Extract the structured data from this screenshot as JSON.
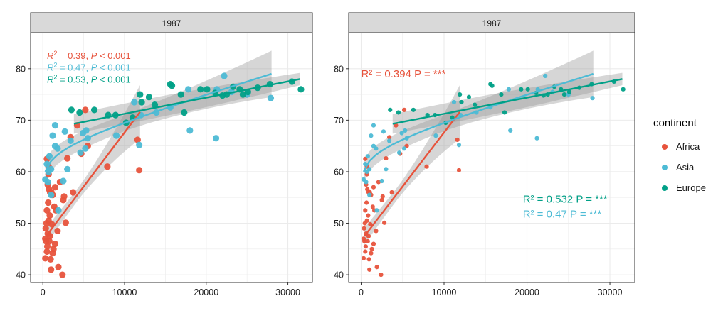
{
  "colors": {
    "Africa": "#E7533C",
    "Asia": "#4DBBD5",
    "Europe": "#00A087",
    "panel_bg": "#FFFFFF",
    "strip_bg": "#D9D9D9",
    "grid": "#EBEBEB",
    "ribbon": "#999999"
  },
  "legend": {
    "title": "continent",
    "items": [
      "Africa",
      "Asia",
      "Europe"
    ]
  },
  "chart_data": [
    {
      "type": "scatter",
      "title": "1987",
      "facet_label": "1987",
      "xlim": [
        -1500,
        33000
      ],
      "ylim": [
        38.5,
        87
      ],
      "xticks": [
        0,
        10000,
        20000,
        30000
      ],
      "xtick_labels": [
        "0",
        "10000",
        "20000",
        "30000"
      ],
      "yticks": [
        40,
        50,
        60,
        70,
        80
      ],
      "ytick_labels": [
        "40",
        "50",
        "60",
        "70",
        "80"
      ],
      "point_size": "large",
      "annotations": [
        {
          "prefix": "R",
          "sup": "2",
          "rest": " = 0.39, ",
          "p_italic": "P",
          "tail": " < 0.001",
          "series": "Africa",
          "x": 500,
          "y": 82.6
        },
        {
          "prefix": "R",
          "sup": "2",
          "rest": " = 0.47, ",
          "p_italic": "P",
          "tail": " < 0.001",
          "series": "Asia",
          "x": 500,
          "y": 80.3
        },
        {
          "prefix": "R",
          "sup": "2",
          "rest": " = 0.53, ",
          "p_italic": "P",
          "tail": " < 0.001",
          "series": "Europe",
          "x": 500,
          "y": 78.0
        }
      ],
      "fits": [
        {
          "series": "Africa",
          "type": "linear",
          "x": [
            400,
            11900
          ],
          "y": [
            47.5,
            71.6
          ],
          "ci_halfwidth": [
            1.2,
            5.2
          ]
        },
        {
          "series": "Asia",
          "type": "loglinear",
          "x": [
            300,
            28000
          ],
          "y": [
            60.0,
            79.0
          ],
          "ci_halfwidth": [
            1.6,
            4.5
          ]
        },
        {
          "series": "Europe",
          "type": "linear",
          "x": [
            3800,
            31500
          ],
          "y": [
            69.3,
            78.0
          ],
          "ci_halfwidth": [
            2.0,
            1.2
          ]
        }
      ]
    },
    {
      "type": "scatter",
      "title": "1987",
      "facet_label": "1987",
      "xlim": [
        -1500,
        33000
      ],
      "ylim": [
        38.5,
        87
      ],
      "xticks": [
        0,
        10000,
        20000,
        30000
      ],
      "xtick_labels": [
        "0",
        "10000",
        "20000",
        "30000"
      ],
      "yticks": [
        40,
        50,
        60,
        70,
        80
      ],
      "ytick_labels": [
        "40",
        "50",
        "60",
        "70",
        "80"
      ],
      "point_size": "small",
      "annotations": [
        {
          "text": "R² = 0.394 P = ***",
          "series": "Africa",
          "x": 0,
          "y": 79.0
        },
        {
          "text": "R² = 0.532 P = ***",
          "series": "Europe",
          "x": 19500,
          "y": 54.7
        },
        {
          "text": "R² = 0.47 P = ***",
          "series": "Asia",
          "x": 19500,
          "y": 51.8
        }
      ],
      "fits": [
        {
          "series": "Africa",
          "type": "linear",
          "x": [
            400,
            11900
          ],
          "y": [
            47.5,
            71.6
          ],
          "ci_halfwidth": [
            1.2,
            5.2
          ]
        },
        {
          "series": "Asia",
          "type": "loglinear",
          "x": [
            300,
            28000
          ],
          "y": [
            60.0,
            79.0
          ],
          "ci_halfwidth": [
            1.6,
            4.5
          ]
        },
        {
          "series": "Europe",
          "type": "linear",
          "x": [
            3800,
            31500
          ],
          "y": [
            69.3,
            78.0
          ],
          "ci_halfwidth": [
            2.0,
            1.2
          ]
        }
      ]
    }
  ],
  "series_points": {
    "Africa": [
      [
        2800,
        50.1
      ],
      [
        2600,
        55.2
      ],
      [
        2400,
        40.0
      ],
      [
        1900,
        41.5
      ],
      [
        1800,
        48.5
      ],
      [
        1600,
        52.5
      ],
      [
        1500,
        46.0
      ],
      [
        1400,
        53.2
      ],
      [
        1300,
        45.0
      ],
      [
        1200,
        44.2
      ],
      [
        1100,
        49.8
      ],
      [
        1050,
        56.0
      ],
      [
        1000,
        41.0
      ],
      [
        950,
        43.0
      ],
      [
        900,
        47.5
      ],
      [
        850,
        51.5
      ],
      [
        800,
        46.5
      ],
      [
        750,
        56.6
      ],
      [
        700,
        50.5
      ],
      [
        650,
        54.0
      ],
      [
        600,
        48.0
      ],
      [
        600,
        57.5
      ],
      [
        550,
        45.5
      ],
      [
        500,
        44.5
      ],
      [
        500,
        52.5
      ],
      [
        450,
        50.0
      ],
      [
        400,
        46.5
      ],
      [
        350,
        49.0
      ],
      [
        300,
        47.0
      ],
      [
        300,
        43.2
      ],
      [
        1500,
        57.0
      ],
      [
        1200,
        55.5
      ],
      [
        900,
        56.0
      ],
      [
        700,
        59.5
      ],
      [
        700,
        61.0
      ],
      [
        500,
        62.5
      ],
      [
        2100,
        58.0
      ],
      [
        2500,
        54.5
      ],
      [
        3400,
        66.7
      ],
      [
        3700,
        56.0
      ],
      [
        4200,
        69.0
      ],
      [
        4700,
        63.5
      ],
      [
        5200,
        72.0
      ],
      [
        5500,
        65.0
      ],
      [
        7900,
        61.0
      ],
      [
        11800,
        60.3
      ],
      [
        11600,
        66.2
      ],
      [
        3000,
        62.6
      ]
    ],
    "Asia": [
      [
        300,
        58.5
      ],
      [
        500,
        61.5
      ],
      [
        600,
        58.0
      ],
      [
        700,
        60.0
      ],
      [
        800,
        63.0
      ],
      [
        1000,
        55.5
      ],
      [
        1000,
        60.5
      ],
      [
        1200,
        67.0
      ],
      [
        1500,
        65.0
      ],
      [
        1500,
        69.0
      ],
      [
        1800,
        64.5
      ],
      [
        1900,
        52.5
      ],
      [
        2500,
        58.2
      ],
      [
        2700,
        67.8
      ],
      [
        3000,
        60.5
      ],
      [
        3400,
        66.0
      ],
      [
        4600,
        63.7
      ],
      [
        4900,
        67.5
      ],
      [
        5200,
        64.5
      ],
      [
        5300,
        68.0
      ],
      [
        5500,
        66.5
      ],
      [
        9000,
        67.0
      ],
      [
        11200,
        73.5
      ],
      [
        11800,
        65.2
      ],
      [
        13900,
        71.5
      ],
      [
        15600,
        72.5
      ],
      [
        17800,
        76.0
      ],
      [
        18000,
        68.0
      ],
      [
        21200,
        66.5
      ],
      [
        21300,
        76.0
      ],
      [
        22200,
        78.6
      ],
      [
        23100,
        75.5
      ],
      [
        25000,
        75.0
      ],
      [
        27900,
        74.3
      ],
      [
        12000,
        71.0
      ]
    ],
    "Europe": [
      [
        3500,
        72.0
      ],
      [
        4500,
        71.5
      ],
      [
        6300,
        72.0
      ],
      [
        8000,
        71.0
      ],
      [
        8900,
        71.0
      ],
      [
        10200,
        69.5
      ],
      [
        11000,
        70.5
      ],
      [
        11900,
        75.0
      ],
      [
        12100,
        73.5
      ],
      [
        13000,
        74.5
      ],
      [
        13700,
        73.0
      ],
      [
        15600,
        77.0
      ],
      [
        15800,
        76.7
      ],
      [
        16900,
        75.0
      ],
      [
        17300,
        71.5
      ],
      [
        19300,
        76.0
      ],
      [
        20100,
        76.0
      ],
      [
        21100,
        75.3
      ],
      [
        22000,
        74.8
      ],
      [
        22500,
        75.0
      ],
      [
        23300,
        76.5
      ],
      [
        24100,
        76.0
      ],
      [
        24500,
        75.0
      ],
      [
        25100,
        75.5
      ],
      [
        26300,
        76.3
      ],
      [
        27800,
        77.0
      ],
      [
        30500,
        77.5
      ],
      [
        31600,
        76.0
      ]
    ]
  }
}
